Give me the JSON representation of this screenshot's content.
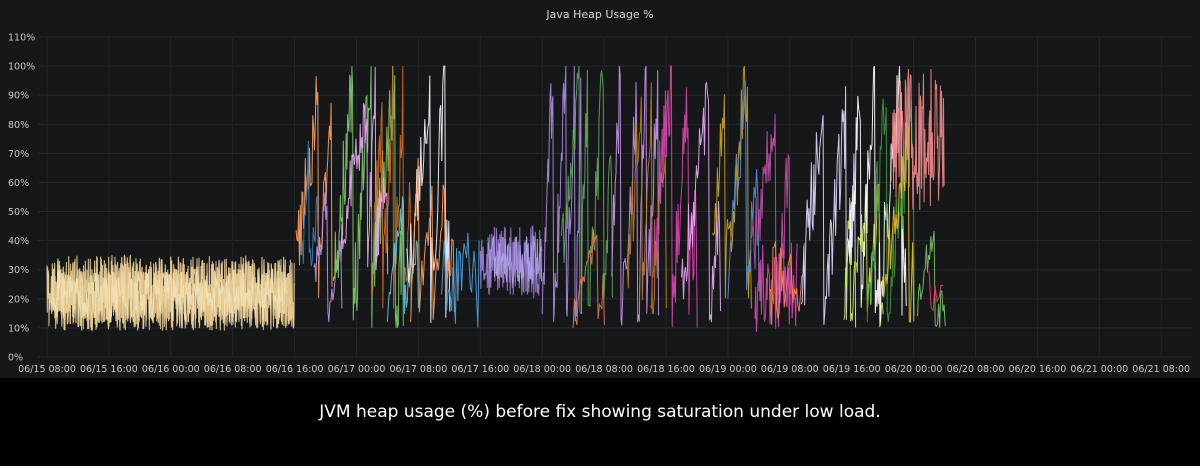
{
  "panel": {
    "title": "Java Heap Usage %"
  },
  "caption": "JVM heap usage (%) before fix showing saturation under low load.",
  "colors": {
    "panel_bg": "#161719",
    "grid": "#26282c",
    "tick_text": "#c7c8ca",
    "caption_bg": "#000000"
  },
  "chart_data": {
    "type": "line",
    "title": "Java Heap Usage %",
    "xlabel": "",
    "ylabel": "",
    "ylim": [
      0,
      110
    ],
    "y_ticks": [
      "0%",
      "10%",
      "20%",
      "30%",
      "40%",
      "50%",
      "60%",
      "70%",
      "80%",
      "90%",
      "100%",
      "110%"
    ],
    "x_ticks": [
      "06/15 08:00",
      "06/15 16:00",
      "06/16 00:00",
      "06/16 08:00",
      "06/16 16:00",
      "06/17 00:00",
      "06/17 08:00",
      "06/17 16:00",
      "06/18 00:00",
      "06/18 08:00",
      "06/18 16:00",
      "06/19 00:00",
      "06/19 08:00",
      "06/19 16:00",
      "06/20 00:00",
      "06/20 08:00",
      "06/20 16:00",
      "06/21 00:00",
      "06/21 08:00"
    ],
    "grid": true,
    "legend": "none",
    "series": [
      {
        "color": "#f2d9a0",
        "start": 0.0,
        "end": 32.0,
        "low": 9,
        "high": 35,
        "shape": "noise",
        "dense": 3.0
      },
      {
        "color": "#e6c88c",
        "start": 1.0,
        "end": 32.0,
        "low": 10,
        "high": 33,
        "shape": "noise",
        "dense": 2.4
      },
      {
        "color": "#f0e0b4",
        "start": 0.5,
        "end": 31.0,
        "low": 12,
        "high": 30,
        "shape": "noise",
        "dense": 1.6
      },
      {
        "color": "#ff9f5c",
        "start": 32.2,
        "end": 36.8,
        "low": 20,
        "high": 99,
        "shape": "saw",
        "dense": 1.2
      },
      {
        "color": "#3d7ebf",
        "start": 33.0,
        "end": 35.0,
        "low": 30,
        "high": 75,
        "shape": "saw",
        "dense": 1.0
      },
      {
        "color": "#c792ea",
        "start": 34.5,
        "end": 38.0,
        "low": 12,
        "high": 60,
        "shape": "saw",
        "dense": 1.0
      },
      {
        "color": "#7ecb6a",
        "start": 37.0,
        "end": 46.0,
        "low": 10,
        "high": 100,
        "shape": "saw",
        "dense": 1.4
      },
      {
        "color": "#e8a8f5",
        "start": 38.0,
        "end": 44.0,
        "low": 28,
        "high": 95,
        "shape": "saw",
        "dense": 1.2
      },
      {
        "color": "#d2691e",
        "start": 42.0,
        "end": 47.0,
        "low": 15,
        "high": 100,
        "shape": "saw",
        "dense": 1.2
      },
      {
        "color": "#5bc4d9",
        "start": 44.0,
        "end": 48.0,
        "low": 12,
        "high": 60,
        "shape": "saw",
        "dense": 1.0
      },
      {
        "color": "#f5f5ff",
        "start": 46.5,
        "end": 52.0,
        "low": 10,
        "high": 100,
        "shape": "saw",
        "dense": 1.0
      },
      {
        "color": "#ff9f5c",
        "start": 47.0,
        "end": 52.5,
        "low": 12,
        "high": 70,
        "shape": "saw",
        "dense": 0.8
      },
      {
        "color": "#4aa3df",
        "start": 51.0,
        "end": 56.0,
        "low": 8,
        "high": 45,
        "shape": "noise",
        "dense": 0.8
      },
      {
        "color": "#9c7fd6",
        "start": 56.0,
        "end": 64.0,
        "low": 20,
        "high": 45,
        "shape": "noise",
        "dense": 2.0
      },
      {
        "color": "#b3a2e8",
        "start": 57.0,
        "end": 64.0,
        "low": 25,
        "high": 42,
        "shape": "noise",
        "dense": 1.4
      },
      {
        "color": "#a98be0",
        "start": 64.0,
        "end": 69.0,
        "low": 12,
        "high": 100,
        "shape": "saw",
        "dense": 1.4
      },
      {
        "color": "#5ea858",
        "start": 66.5,
        "end": 73.0,
        "low": 15,
        "high": 100,
        "shape": "saw",
        "dense": 1.2
      },
      {
        "color": "#e07b53",
        "start": 68.0,
        "end": 72.0,
        "low": 10,
        "high": 50,
        "shape": "saw",
        "dense": 0.8
      },
      {
        "color": "#c792ea",
        "start": 73.0,
        "end": 79.0,
        "low": 10,
        "high": 100,
        "shape": "saw",
        "dense": 1.2
      },
      {
        "color": "#b8860b",
        "start": 75.0,
        "end": 80.0,
        "low": 15,
        "high": 100,
        "shape": "saw",
        "dense": 1.0
      },
      {
        "color": "#d946b0",
        "start": 78.0,
        "end": 84.0,
        "low": 10,
        "high": 100,
        "shape": "saw",
        "dense": 1.2
      },
      {
        "color": "#e8a8f5",
        "start": 82.0,
        "end": 87.0,
        "low": 12,
        "high": 100,
        "shape": "saw",
        "dense": 1.0
      },
      {
        "color": "#c9a227",
        "start": 86.0,
        "end": 91.0,
        "low": 15,
        "high": 100,
        "shape": "saw",
        "dense": 1.0
      },
      {
        "color": "#5b8fd6",
        "start": 88.0,
        "end": 92.0,
        "low": 20,
        "high": 98,
        "shape": "saw",
        "dense": 0.8
      },
      {
        "color": "#c04fa8",
        "start": 91.0,
        "end": 96.0,
        "low": 12,
        "high": 90,
        "shape": "saw",
        "dense": 1.0
      },
      {
        "color": "#d946b0",
        "start": 91.5,
        "end": 97.0,
        "low": 8,
        "high": 40,
        "shape": "noise",
        "dense": 1.4
      },
      {
        "color": "#ff8c42",
        "start": 93.5,
        "end": 98.0,
        "low": 10,
        "high": 40,
        "shape": "noise",
        "dense": 0.8
      },
      {
        "color": "#dcd7ff",
        "start": 97.5,
        "end": 104.5,
        "low": 10,
        "high": 100,
        "shape": "saw",
        "dense": 1.2
      },
      {
        "color": "#c8f040",
        "start": 103.0,
        "end": 108.0,
        "low": 10,
        "high": 60,
        "shape": "saw",
        "dense": 1.2
      },
      {
        "color": "#ffffff",
        "start": 103.5,
        "end": 111.0,
        "low": 12,
        "high": 100,
        "shape": "saw",
        "dense": 1.2
      },
      {
        "color": "#3a9a3a",
        "start": 106.0,
        "end": 112.0,
        "low": 12,
        "high": 90,
        "shape": "saw",
        "dense": 1.0
      },
      {
        "color": "#f0c020",
        "start": 108.0,
        "end": 112.0,
        "low": 12,
        "high": 85,
        "shape": "saw",
        "dense": 0.9
      },
      {
        "color": "#f08a8a",
        "start": 109.0,
        "end": 116.0,
        "low": 50,
        "high": 99,
        "shape": "noise",
        "dense": 1.6
      },
      {
        "color": "#78c26a",
        "start": 112.5,
        "end": 116.0,
        "low": 10,
        "high": 50,
        "shape": "saw",
        "dense": 0.9
      },
      {
        "color": "#e04070",
        "start": 114.0,
        "end": 116.0,
        "low": 10,
        "high": 35,
        "shape": "noise",
        "dense": 0.5
      }
    ]
  }
}
